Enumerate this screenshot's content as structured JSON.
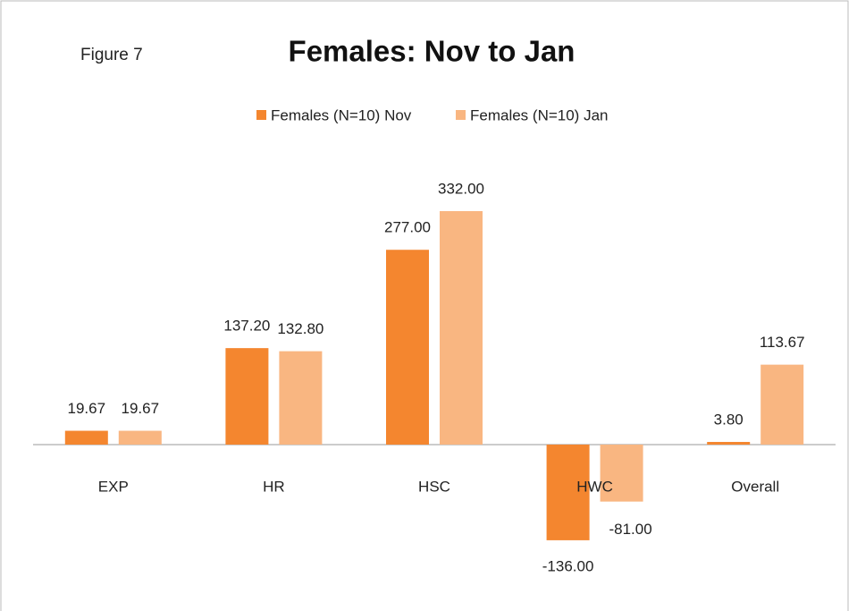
{
  "chart_data": {
    "type": "bar",
    "title": "Females: Nov to Jan",
    "annotation": "Figure 7",
    "categories": [
      "EXP",
      "HR",
      "HSC",
      "HWC",
      "Overall"
    ],
    "series": [
      {
        "name": "Females (N=10) Nov",
        "color": "#f4862f",
        "values": [
          19.67,
          137.2,
          277,
          -136,
          3.8
        ],
        "value_labels": [
          "19.67",
          "137.20",
          "277.00",
          "-136.00",
          "3.80"
        ]
      },
      {
        "name": "Females (N=10) Jan",
        "color": "#f9b681",
        "values": [
          19.67,
          132.8,
          332,
          -81,
          113.67
        ],
        "value_labels": [
          "19.67",
          "132.80",
          "332.00",
          "-81.00",
          "113.67"
        ]
      }
    ],
    "legend": "top"
  }
}
